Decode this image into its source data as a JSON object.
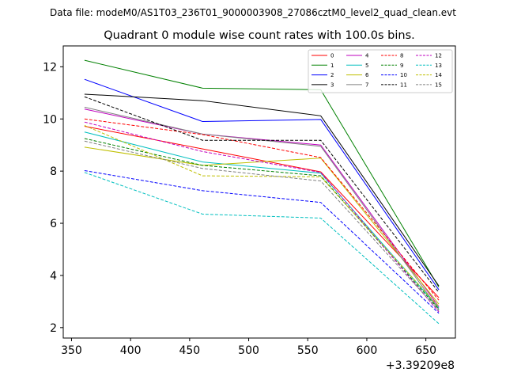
{
  "figure": {
    "suptitle": "Data file: modeM0/AS1T03_236T01_9000003908_27086cztM0_level2_quad_clean.evt"
  },
  "chart_data": {
    "type": "line",
    "title": "Quadrant 0 module wise count rates with 100.0s bins.",
    "xlabel": "",
    "ylabel": "",
    "x_offset_label": "+3.39209e8",
    "x": [
      361,
      461,
      561,
      661
    ],
    "xlim": [
      343,
      675
    ],
    "ylim": [
      1.6,
      12.8
    ],
    "xticks": [
      350,
      400,
      450,
      500,
      550,
      600,
      650
    ],
    "yticks": [
      2,
      4,
      6,
      8,
      10,
      12
    ],
    "grid": false,
    "legend": {
      "placement": "top-right",
      "columns": 4
    },
    "series": [
      {
        "name": "0",
        "color": "#ff0000",
        "dash": "solid",
        "values": [
          9.72,
          8.85,
          7.97,
          3.15
        ]
      },
      {
        "name": "1",
        "color": "#008000",
        "dash": "solid",
        "values": [
          12.25,
          11.18,
          11.12,
          3.55
        ]
      },
      {
        "name": "2",
        "color": "#0000ff",
        "dash": "solid",
        "values": [
          11.52,
          9.9,
          9.98,
          3.45
        ]
      },
      {
        "name": "3",
        "color": "#000000",
        "dash": "solid",
        "values": [
          10.95,
          10.7,
          10.12,
          3.6
        ]
      },
      {
        "name": "4",
        "color": "#bf00bf",
        "dash": "solid",
        "values": [
          10.38,
          9.42,
          9.0,
          2.8
        ]
      },
      {
        "name": "5",
        "color": "#00bfbf",
        "dash": "solid",
        "values": [
          9.5,
          8.35,
          7.92,
          2.75
        ]
      },
      {
        "name": "6",
        "color": "#bfbf00",
        "dash": "solid",
        "values": [
          8.92,
          8.22,
          8.5,
          2.9
        ]
      },
      {
        "name": "7",
        "color": "#808080",
        "dash": "solid",
        "values": [
          10.45,
          9.42,
          8.95,
          2.7
        ]
      },
      {
        "name": "8",
        "color": "#ff0000",
        "dash": "dashed",
        "values": [
          10.0,
          9.4,
          8.52,
          3.05
        ]
      },
      {
        "name": "9",
        "color": "#008000",
        "dash": "dashed",
        "values": [
          9.25,
          8.22,
          7.82,
          2.7
        ]
      },
      {
        "name": "10",
        "color": "#0000ff",
        "dash": "dashed",
        "values": [
          8.02,
          7.25,
          6.8,
          2.55
        ]
      },
      {
        "name": "11",
        "color": "#000000",
        "dash": "dashed",
        "values": [
          10.85,
          9.18,
          9.18,
          3.35
        ]
      },
      {
        "name": "12",
        "color": "#bf00bf",
        "dash": "dashed",
        "values": [
          9.88,
          8.75,
          7.95,
          2.6
        ]
      },
      {
        "name": "13",
        "color": "#00bfbf",
        "dash": "dashed",
        "values": [
          7.95,
          6.35,
          6.2,
          2.15
        ]
      },
      {
        "name": "14",
        "color": "#bfbf00",
        "dash": "dashed",
        "values": [
          9.75,
          7.82,
          7.78,
          2.8
        ]
      },
      {
        "name": "15",
        "color": "#808080",
        "dash": "dashed",
        "values": [
          9.15,
          8.1,
          7.62,
          2.65
        ]
      }
    ]
  }
}
